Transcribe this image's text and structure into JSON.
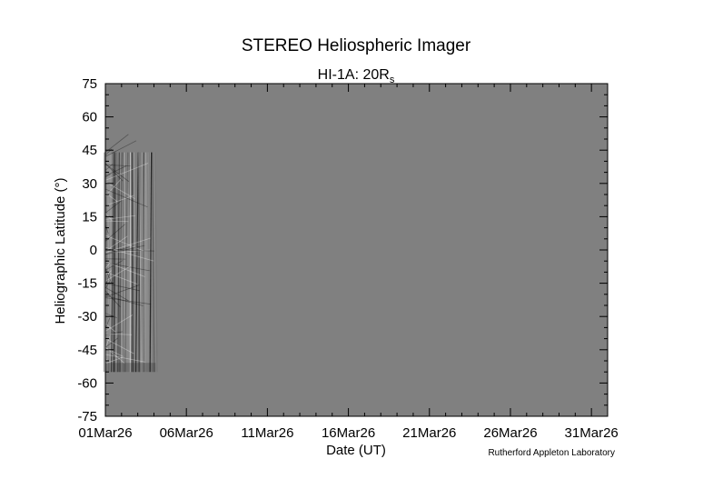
{
  "chart_data": {
    "type": "heatmap",
    "title": "STEREO Heliospheric Imager",
    "subtitle": "HI-1A: 20R",
    "subtitle_subscript": "s",
    "xlabel": "Date (UT)",
    "ylabel": "Heliographic Latitude (°)",
    "x_tick_labels": [
      "01Mar26",
      "06Mar26",
      "11Mar26",
      "16Mar26",
      "21Mar26",
      "26Mar26",
      "31Mar26"
    ],
    "x_range_days": [
      0,
      31
    ],
    "x_tick_days": [
      0,
      5,
      10,
      15,
      20,
      25,
      30
    ],
    "ylim": [
      -75,
      75
    ],
    "y_ticks": [
      75,
      60,
      45,
      30,
      15,
      0,
      -15,
      -30,
      -45,
      -60,
      -75
    ],
    "y_tick_labels": [
      "75",
      "60",
      "45",
      "30",
      "15",
      "0",
      "-15",
      "-30",
      "-45",
      "-60",
      "-75"
    ],
    "data_coverage": {
      "start_day": 0,
      "end_day": 3.1,
      "lat_min": -55,
      "lat_max": 44
    },
    "background_color": "#808080",
    "credit": "Rutherford Appleton Laboratory"
  }
}
